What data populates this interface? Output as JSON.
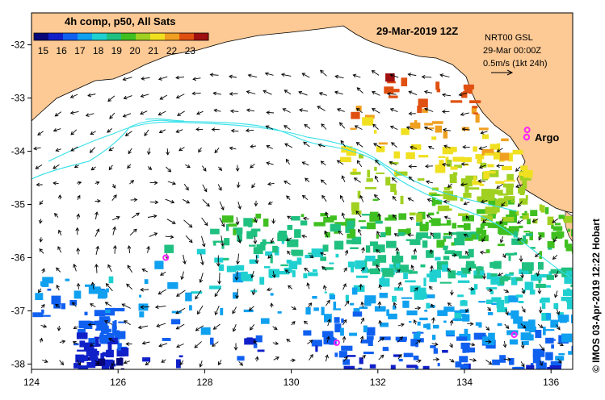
{
  "header": {
    "composite_label": "4h comp, p50, All Sats",
    "date_title": "29-Mar-2019 12Z"
  },
  "colorbar": {
    "tick_labels": [
      "15",
      "16",
      "17",
      "18",
      "19",
      "20",
      "21",
      "22",
      "23"
    ],
    "min": 14.5,
    "max": 24,
    "colors": [
      "#08087a",
      "#1020c8",
      "#1060f0",
      "#10a0f0",
      "#20d0d0",
      "#20c080",
      "#40c020",
      "#a0d020",
      "#f0e020",
      "#f0a020",
      "#e05010",
      "#a01010"
    ]
  },
  "info_box": {
    "line1": "NRT00 GSL",
    "line2": "29-Mar 00:00Z",
    "scale_label": "0.5m/s (1kt 24h)"
  },
  "argo_label": "Argo",
  "credit": "© IMOS 03-Apr-2019 12:22 Hobart",
  "axes": {
    "x_labels": [
      "124",
      "126",
      "128",
      "130",
      "132",
      "134",
      "136"
    ],
    "y_labels": [
      "-32",
      "-33",
      "-34",
      "-35",
      "-36",
      "-37",
      "-38"
    ],
    "xlim": [
      124,
      136.5
    ],
    "ylim": [
      -38.1,
      -31.4
    ]
  },
  "colors": {
    "land": "#fdc994",
    "contour": "#33e0e8",
    "argo_marker": "#ff20ff",
    "arrow": "#000000"
  },
  "argo_floats": [
    {
      "lon": 127.1,
      "lat": -36.0
    },
    {
      "lon": 131.05,
      "lat": -37.6
    },
    {
      "lon": 135.15,
      "lat": -37.45
    },
    {
      "lon": 135.45,
      "lat": -33.6
    }
  ]
}
